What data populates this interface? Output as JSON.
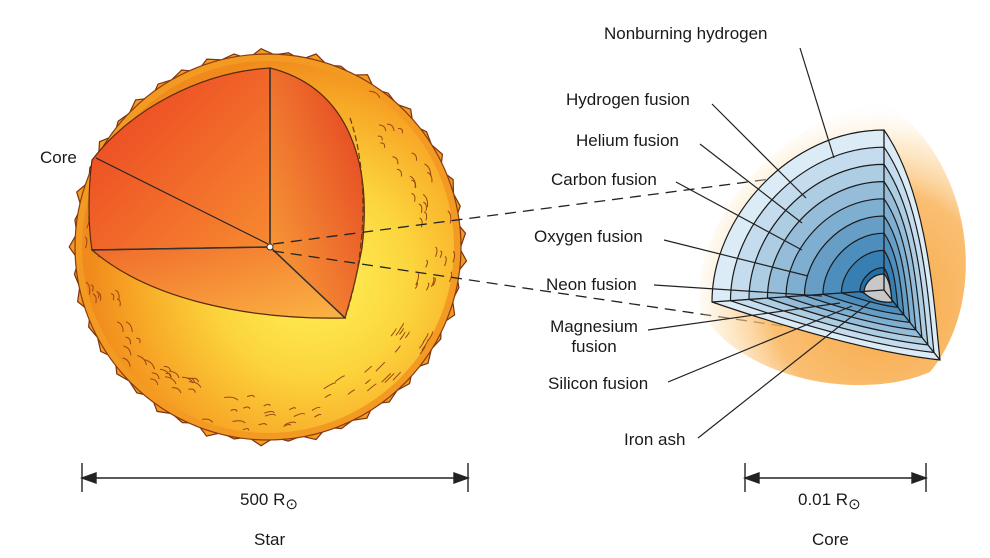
{
  "labels": {
    "core": "Core",
    "nonburning_hydrogen": "Nonburning hydrogen",
    "hydrogen_fusion": "Hydrogen fusion",
    "helium_fusion": "Helium fusion",
    "carbon_fusion": "Carbon fusion",
    "oxygen_fusion": "Oxygen fusion",
    "neon_fusion": "Neon fusion",
    "magnesium_fusion_line1": "Magnesium",
    "magnesium_fusion_line2": "fusion",
    "silicon_fusion": "Silicon fusion",
    "iron_ash": "Iron ash"
  },
  "scale_bars": {
    "star": {
      "value": "500 R",
      "symbol": "⊙",
      "caption": "Star"
    },
    "core": {
      "value": "0.01 R",
      "symbol": "⊙",
      "caption": "Core"
    }
  },
  "colors": {
    "star_outer": "#f5a81e",
    "star_inner_yellow": "#fde84a",
    "star_cut_red": "#ec4a26",
    "star_cut_orange": "#f58a2e",
    "glow": "#f7a541",
    "shell_light": "#dcecf7",
    "shell_dark": "#1f6fa8",
    "iron_core": "#c8c8c8"
  }
}
